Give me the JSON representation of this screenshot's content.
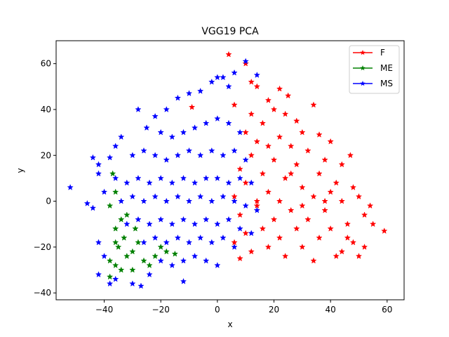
{
  "chart_data": {
    "type": "scatter",
    "title": "VGG19 PCA",
    "xlabel": "x",
    "ylabel": "y",
    "xlim": [
      -57,
      66
    ],
    "ylim": [
      -43,
      70
    ],
    "xticks": [
      -40,
      -20,
      0,
      20,
      40,
      60
    ],
    "yticks": [
      -40,
      -20,
      0,
      20,
      40,
      60
    ],
    "grid": false,
    "legend_position": "top-right",
    "marker": "star",
    "series": [
      {
        "name": "F",
        "color": "#ff0000",
        "points": [
          [
            4,
            64
          ],
          [
            10,
            60
          ],
          [
            12,
            52
          ],
          [
            14,
            50
          ],
          [
            22,
            49
          ],
          [
            25,
            46
          ],
          [
            18,
            44
          ],
          [
            34,
            42
          ],
          [
            6,
            42
          ],
          [
            -9,
            41
          ],
          [
            12,
            38
          ],
          [
            20,
            40
          ],
          [
            28,
            35
          ],
          [
            24,
            38
          ],
          [
            16,
            34
          ],
          [
            30,
            30
          ],
          [
            36,
            29
          ],
          [
            10,
            30
          ],
          [
            22,
            28
          ],
          [
            40,
            26
          ],
          [
            14,
            26
          ],
          [
            26,
            24
          ],
          [
            32,
            22
          ],
          [
            38,
            18
          ],
          [
            47,
            20
          ],
          [
            44,
            16
          ],
          [
            20,
            18
          ],
          [
            12,
            20
          ],
          [
            28,
            16
          ],
          [
            36,
            12
          ],
          [
            16,
            12
          ],
          [
            24,
            10
          ],
          [
            42,
            8
          ],
          [
            48,
            6
          ],
          [
            50,
            2
          ],
          [
            30,
            6
          ],
          [
            18,
            4
          ],
          [
            10,
            8
          ],
          [
            22,
            0
          ],
          [
            34,
            2
          ],
          [
            44,
            0
          ],
          [
            54,
            -2
          ],
          [
            38,
            -4
          ],
          [
            26,
            -4
          ],
          [
            14,
            -2
          ],
          [
            8,
            -6
          ],
          [
            20,
            -8
          ],
          [
            32,
            -8
          ],
          [
            46,
            -10
          ],
          [
            59,
            -13
          ],
          [
            55,
            -10
          ],
          [
            40,
            -12
          ],
          [
            28,
            -12
          ],
          [
            16,
            -12
          ],
          [
            10,
            -14
          ],
          [
            22,
            -16
          ],
          [
            36,
            -16
          ],
          [
            48,
            -18
          ],
          [
            52,
            -20
          ],
          [
            44,
            -22
          ],
          [
            30,
            -20
          ],
          [
            18,
            -20
          ],
          [
            12,
            -22
          ],
          [
            24,
            -24
          ],
          [
            34,
            -26
          ],
          [
            42,
            -24
          ],
          [
            50,
            -24
          ],
          [
            6,
            -18
          ],
          [
            8,
            -25
          ],
          [
            46,
            -16
          ],
          [
            38,
            0
          ],
          [
            26,
            12
          ],
          [
            18,
            24
          ],
          [
            8,
            14
          ],
          [
            14,
            0
          ],
          [
            30,
            -2
          ],
          [
            40,
            4
          ],
          [
            52,
            -6
          ],
          [
            6,
            2
          ]
        ]
      },
      {
        "name": "ME",
        "color": "#008000",
        "points": [
          [
            -37,
            12
          ],
          [
            -36,
            4
          ],
          [
            -38,
            -2
          ],
          [
            -34,
            -8
          ],
          [
            -36,
            -12
          ],
          [
            -33,
            -16
          ],
          [
            -35,
            -20
          ],
          [
            -32,
            -24
          ],
          [
            -36,
            -28
          ],
          [
            -38,
            -26
          ],
          [
            -34,
            -30
          ],
          [
            -38,
            -33
          ],
          [
            -30,
            -22
          ],
          [
            -28,
            -18
          ],
          [
            -26,
            -26
          ],
          [
            -22,
            -24
          ],
          [
            -18,
            -22
          ],
          [
            -15,
            -23
          ],
          [
            -20,
            -20
          ],
          [
            -24,
            -28
          ],
          [
            -30,
            -30
          ],
          [
            -32,
            -6
          ],
          [
            -29,
            -12
          ],
          [
            -36,
            -18
          ]
        ]
      },
      {
        "name": "MS",
        "color": "#0000ff",
        "points": [
          [
            -52,
            6
          ],
          [
            -46,
            -1
          ],
          [
            -44,
            19
          ],
          [
            -42,
            16
          ],
          [
            -44,
            -3
          ],
          [
            -42,
            -18
          ],
          [
            -40,
            -24
          ],
          [
            -38,
            -36
          ],
          [
            -42,
            -32
          ],
          [
            -36,
            -34
          ],
          [
            -30,
            -36
          ],
          [
            -27,
            -37
          ],
          [
            -24,
            -32
          ],
          [
            -12,
            -35
          ],
          [
            -28,
            40
          ],
          [
            -25,
            32
          ],
          [
            -22,
            37
          ],
          [
            -18,
            40
          ],
          [
            -14,
            45
          ],
          [
            -10,
            47
          ],
          [
            -6,
            48
          ],
          [
            -2,
            52
          ],
          [
            0,
            54
          ],
          [
            2,
            54
          ],
          [
            4,
            50
          ],
          [
            6,
            56
          ],
          [
            10,
            61
          ],
          [
            14,
            55
          ],
          [
            -20,
            30
          ],
          [
            -16,
            28
          ],
          [
            -12,
            30
          ],
          [
            -8,
            32
          ],
          [
            -4,
            34
          ],
          [
            0,
            36
          ],
          [
            4,
            34
          ],
          [
            8,
            30
          ],
          [
            -30,
            20
          ],
          [
            -26,
            22
          ],
          [
            -22,
            20
          ],
          [
            -18,
            18
          ],
          [
            -14,
            20
          ],
          [
            -10,
            22
          ],
          [
            -6,
            20
          ],
          [
            -2,
            22
          ],
          [
            2,
            20
          ],
          [
            6,
            22
          ],
          [
            10,
            18
          ],
          [
            -36,
            10
          ],
          [
            -32,
            8
          ],
          [
            -28,
            10
          ],
          [
            -24,
            8
          ],
          [
            -20,
            10
          ],
          [
            -16,
            8
          ],
          [
            -12,
            10
          ],
          [
            -8,
            8
          ],
          [
            -4,
            10
          ],
          [
            0,
            10
          ],
          [
            4,
            8
          ],
          [
            8,
            10
          ],
          [
            12,
            8
          ],
          [
            -34,
            0
          ],
          [
            -30,
            2
          ],
          [
            -26,
            0
          ],
          [
            -22,
            2
          ],
          [
            -18,
            0
          ],
          [
            -14,
            2
          ],
          [
            -10,
            0
          ],
          [
            -6,
            2
          ],
          [
            -2,
            0
          ],
          [
            2,
            2
          ],
          [
            6,
            0
          ],
          [
            10,
            -2
          ],
          [
            14,
            -4
          ],
          [
            -32,
            -10
          ],
          [
            -28,
            -8
          ],
          [
            -24,
            -10
          ],
          [
            -20,
            -8
          ],
          [
            -16,
            -10
          ],
          [
            -12,
            -8
          ],
          [
            -8,
            -10
          ],
          [
            -4,
            -8
          ],
          [
            0,
            -10
          ],
          [
            4,
            -8
          ],
          [
            8,
            -12
          ],
          [
            12,
            -14
          ],
          [
            -26,
            -18
          ],
          [
            -22,
            -16
          ],
          [
            -18,
            -18
          ],
          [
            -14,
            -16
          ],
          [
            -10,
            -18
          ],
          [
            -6,
            -16
          ],
          [
            -2,
            -18
          ],
          [
            2,
            -16
          ],
          [
            6,
            -20
          ],
          [
            -20,
            -26
          ],
          [
            -16,
            -28
          ],
          [
            -12,
            -26
          ],
          [
            -8,
            -24
          ],
          [
            -4,
            -26
          ],
          [
            0,
            -28
          ],
          [
            -38,
            19
          ],
          [
            -40,
            4
          ],
          [
            -42,
            12
          ],
          [
            -36,
            24
          ],
          [
            -34,
            28
          ]
        ]
      }
    ]
  }
}
